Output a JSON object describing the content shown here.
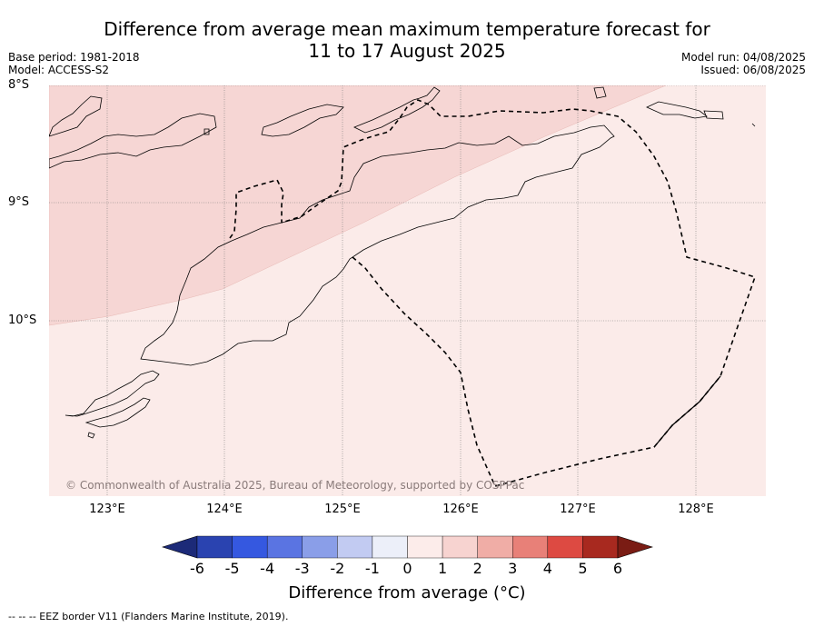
{
  "title_line1": "Difference from average mean maximum temperature forecast for",
  "title_line2": "11 to 17 August 2025",
  "base_period": "Base period: 1981-2018",
  "model": "Model: ACCESS-S2",
  "model_run": "Model run: 04/08/2025",
  "issued": "Issued: 06/08/2025",
  "lat_labels": [
    "8°S",
    "9°S",
    "10°S"
  ],
  "lon_labels": [
    "123°E",
    "124°E",
    "125°E",
    "126°E",
    "127°E",
    "128°E"
  ],
  "watermark": "© Commonwealth of Australia 2025, Bureau of Meteorology, supported by COSPPac",
  "colorbar": {
    "ticks": [
      "-6",
      "-5",
      "-4",
      "-3",
      "-2",
      "-1",
      "0",
      "1",
      "2",
      "3",
      "4",
      "5",
      "6"
    ],
    "colors": [
      "#1c2a78",
      "#2a43b0",
      "#3558e0",
      "#5a74e2",
      "#8a9ee8",
      "#c2cbf2",
      "#eceff9",
      "#fcecea",
      "#f7d3d0",
      "#f0ada6",
      "#e88078",
      "#dd4a42",
      "#a8291f",
      "#7a1c14"
    ],
    "title": "Difference from average (°C)"
  },
  "legend_footer": "--  --  -- EEZ border V11 (Flanders Marine Institute, 2019).",
  "regions": [
    {
      "category": "1 to 2",
      "color": "#f6d6d4"
    },
    {
      "category": "0 to 1",
      "color": "#fbebe9"
    }
  ]
}
